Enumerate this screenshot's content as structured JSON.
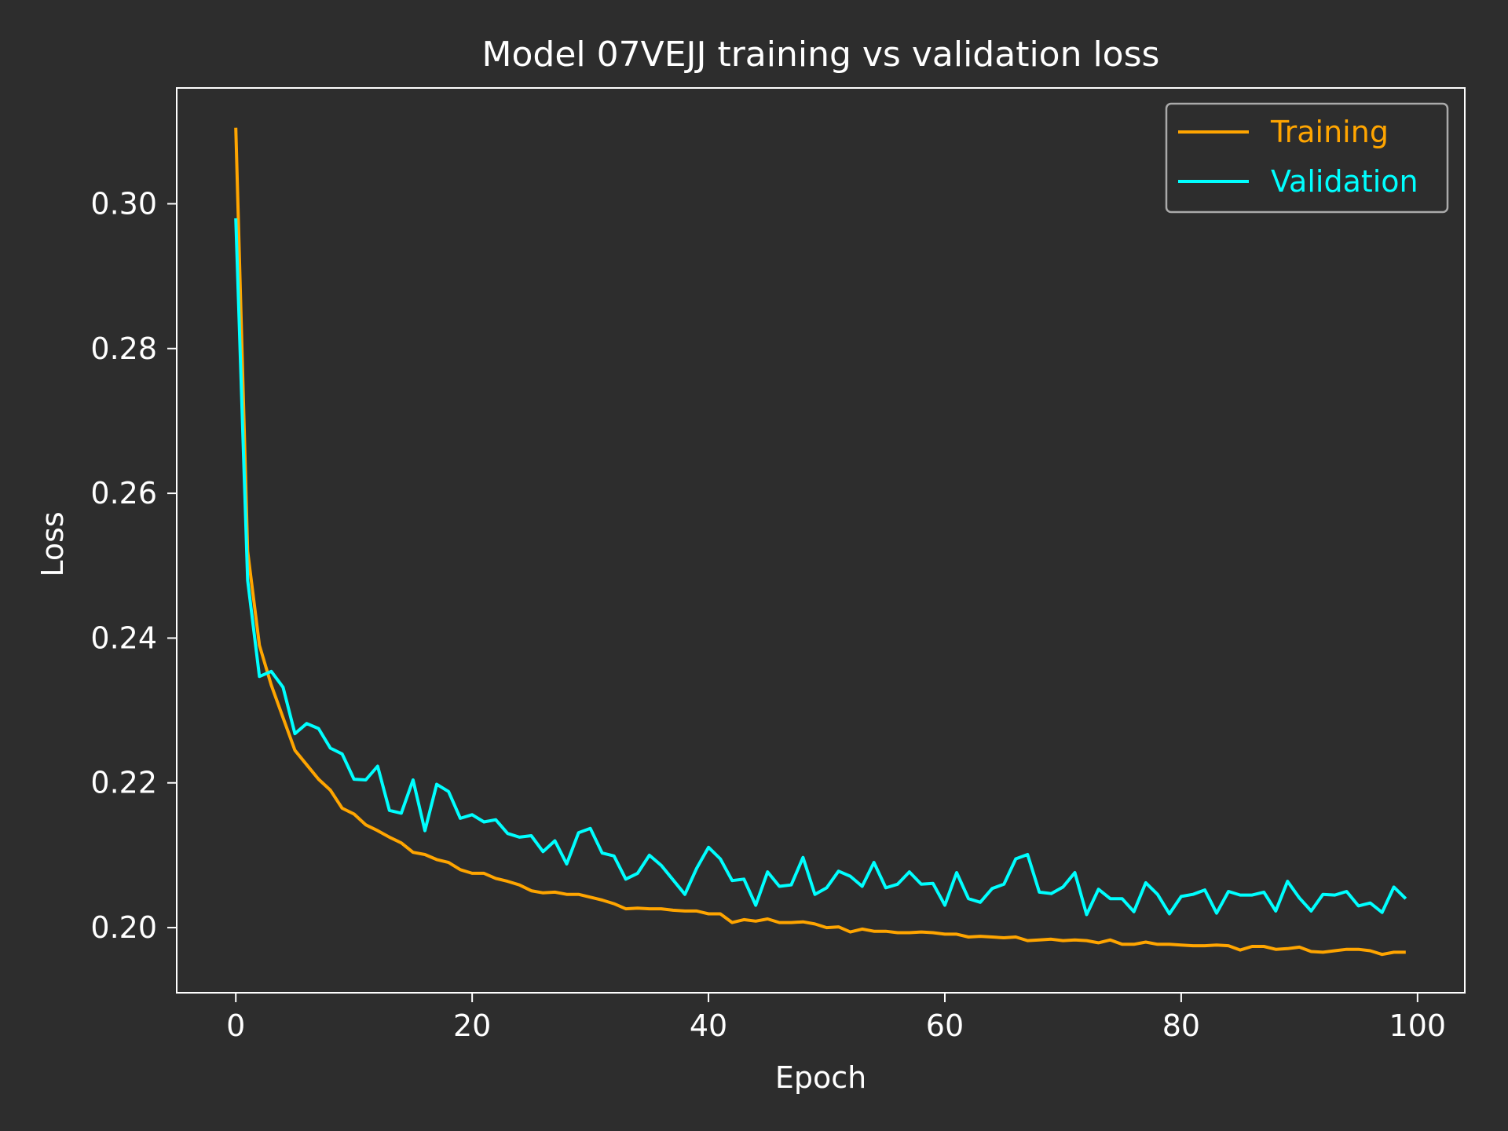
{
  "chart_data": {
    "type": "line",
    "title": "Model 07VEJJ training vs validation loss",
    "xlabel": "Epoch",
    "ylabel": "Loss",
    "xlim": [
      -5,
      104
    ],
    "ylim": [
      0.191,
      0.316
    ],
    "xticks": [
      0,
      20,
      40,
      60,
      80,
      100
    ],
    "xtick_labels": [
      "0",
      "20",
      "40",
      "60",
      "80",
      "100"
    ],
    "yticks": [
      0.2,
      0.22,
      0.24,
      0.26,
      0.28,
      0.3
    ],
    "ytick_labels": [
      "0.20",
      "0.22",
      "0.24",
      "0.26",
      "0.28",
      "0.30"
    ],
    "grid": false,
    "legend_position": "top-right",
    "colors": {
      "background": "#2d2d2d",
      "axes": "#ffffff",
      "training": "#ffa500",
      "validation": "#00ffff",
      "legend_border": "#aaaaaa"
    },
    "x": [
      0,
      1,
      2,
      3,
      4,
      5,
      6,
      7,
      8,
      9,
      10,
      11,
      12,
      13,
      14,
      15,
      16,
      17,
      18,
      19,
      20,
      21,
      22,
      23,
      24,
      25,
      26,
      27,
      28,
      29,
      30,
      31,
      32,
      33,
      34,
      35,
      36,
      37,
      38,
      39,
      40,
      41,
      42,
      43,
      44,
      45,
      46,
      47,
      48,
      49,
      50,
      51,
      52,
      53,
      54,
      55,
      56,
      57,
      58,
      59,
      60,
      61,
      62,
      63,
      64,
      65,
      66,
      67,
      68,
      69,
      70,
      71,
      72,
      73,
      74,
      75,
      76,
      77,
      78,
      79,
      80,
      81,
      82,
      83,
      84,
      85,
      86,
      87,
      88,
      89,
      90,
      91,
      92,
      93,
      94,
      95,
      96,
      97,
      98,
      99
    ],
    "series": [
      {
        "name": "Training",
        "values": [
          0.3105,
          0.252,
          0.239,
          0.2335,
          0.229,
          0.2245,
          0.2225,
          0.2205,
          0.219,
          0.2165,
          0.2157,
          0.2142,
          0.2134,
          0.2125,
          0.2117,
          0.2104,
          0.2101,
          0.2094,
          0.209,
          0.208,
          0.2075,
          0.2075,
          0.2068,
          0.2064,
          0.2059,
          0.2051,
          0.2048,
          0.2049,
          0.2046,
          0.2046,
          0.2042,
          0.2038,
          0.2033,
          0.2026,
          0.2027,
          0.2026,
          0.2026,
          0.2024,
          0.2023,
          0.2023,
          0.2019,
          0.2019,
          0.2007,
          0.2011,
          0.2009,
          0.2012,
          0.2007,
          0.2007,
          0.2008,
          0.2005,
          0.2,
          0.2001,
          0.1994,
          0.1998,
          0.1995,
          0.1995,
          0.1993,
          0.1993,
          0.1994,
          0.1993,
          0.1991,
          0.1991,
          0.1987,
          0.1988,
          0.1987,
          0.1986,
          0.1987,
          0.1982,
          0.1983,
          0.1984,
          0.1982,
          0.1983,
          0.1982,
          0.1979,
          0.1983,
          0.1977,
          0.1977,
          0.198,
          0.1977,
          0.1977,
          0.1976,
          0.1975,
          0.1975,
          0.1976,
          0.1975,
          0.1969,
          0.1974,
          0.1974,
          0.197,
          0.1971,
          0.1973,
          0.1967,
          0.1966,
          0.1968,
          0.197,
          0.197,
          0.1968,
          0.1963,
          0.1966,
          0.1966
        ]
      },
      {
        "name": "Validation",
        "values": [
          0.298,
          0.248,
          0.2347,
          0.2354,
          0.2332,
          0.2268,
          0.2282,
          0.2275,
          0.2248,
          0.224,
          0.2205,
          0.2204,
          0.2223,
          0.2162,
          0.2158,
          0.2204,
          0.2134,
          0.2198,
          0.2188,
          0.2151,
          0.2156,
          0.2146,
          0.2149,
          0.213,
          0.2125,
          0.2127,
          0.2105,
          0.212,
          0.2088,
          0.2131,
          0.2137,
          0.2103,
          0.2099,
          0.2067,
          0.2075,
          0.21,
          0.2086,
          0.2066,
          0.2046,
          0.2082,
          0.2111,
          0.2095,
          0.2065,
          0.2067,
          0.2031,
          0.2077,
          0.2057,
          0.2059,
          0.2097,
          0.2046,
          0.2055,
          0.2078,
          0.2071,
          0.2057,
          0.209,
          0.2055,
          0.206,
          0.2077,
          0.206,
          0.2061,
          0.2031,
          0.2076,
          0.204,
          0.2035,
          0.2054,
          0.206,
          0.2095,
          0.2101,
          0.2049,
          0.2047,
          0.2056,
          0.2076,
          0.2018,
          0.2053,
          0.204,
          0.204,
          0.2022,
          0.2062,
          0.2046,
          0.2019,
          0.2043,
          0.2046,
          0.2052,
          0.202,
          0.205,
          0.2045,
          0.2045,
          0.2049,
          0.2023,
          0.2064,
          0.2041,
          0.2023,
          0.2046,
          0.2045,
          0.205,
          0.203,
          0.2034,
          0.2021,
          0.2056,
          0.204
        ]
      }
    ]
  }
}
